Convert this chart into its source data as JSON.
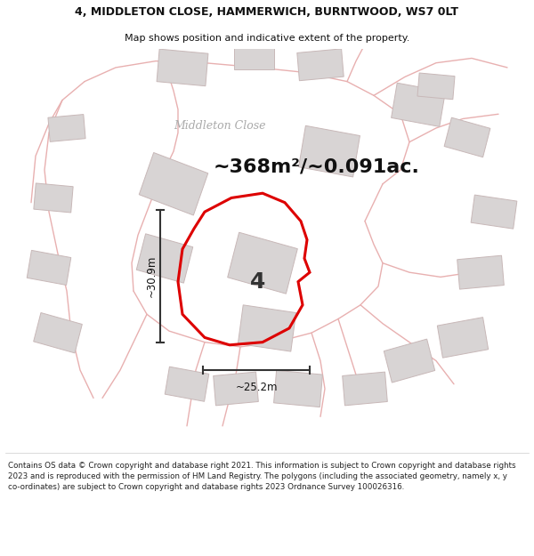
{
  "title_line1": "4, MIDDLETON CLOSE, HAMMERWICH, BURNTWOOD, WS7 0LT",
  "title_line2": "Map shows position and indicative extent of the property.",
  "area_text": "~368m²/~0.091ac.",
  "label_number": "4",
  "dim_width": "~25.2m",
  "dim_height": "~30.9m",
  "road_label": "Middleton Close",
  "footer_text": "Contains OS data © Crown copyright and database right 2021. This information is subject to Crown copyright and database rights 2023 and is reproduced with the permission of HM Land Registry. The polygons (including the associated geometry, namely x, y co-ordinates) are subject to Crown copyright and database rights 2023 Ordnance Survey 100026316.",
  "bg_color": "#f2eeee",
  "plot_fill": "#ffffff",
  "plot_stroke": "#dd0000",
  "building_fill": "#d8d4d4",
  "building_stroke": "#c8b8b8",
  "road_color": "#e8b0b0",
  "dim_color": "#333333",
  "title_color": "#111111",
  "footer_color": "#222222",
  "white": "#ffffff"
}
